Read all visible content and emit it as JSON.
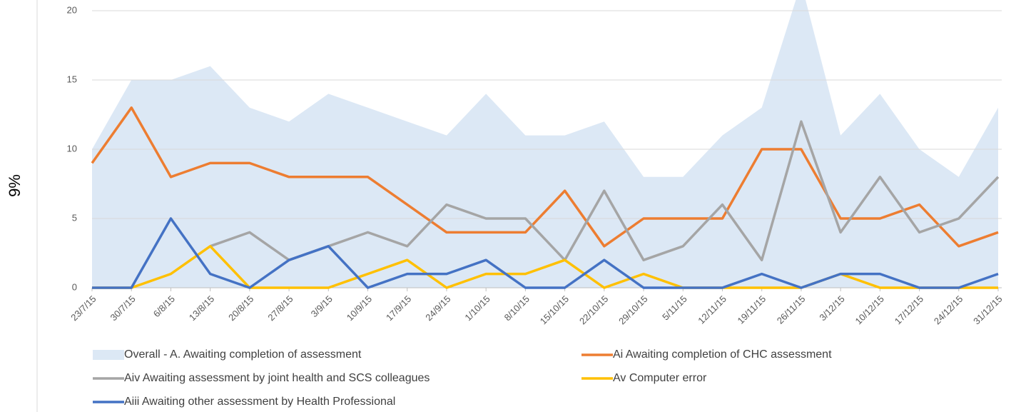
{
  "side_label": "9%",
  "chart_data": {
    "type": "line",
    "categories": [
      "23/7/15",
      "30/7/15",
      "6/8/15",
      "13/8/15",
      "20/8/15",
      "27/8/15",
      "3/9/15",
      "10/9/15",
      "17/9/15",
      "24/9/15",
      "1/10/15",
      "8/10/15",
      "15/10/15",
      "22/10/15",
      "29/10/15",
      "5/11/15",
      "12/11/15",
      "19/11/15",
      "26/11/15",
      "3/12/15",
      "10/12/15",
      "17/12/15",
      "24/12/15",
      "31/12/15"
    ],
    "ylim": [
      0,
      20
    ],
    "yticks": [
      0,
      5,
      10,
      15,
      20
    ],
    "grid": true,
    "series": [
      {
        "name": "Overall - A. Awaiting completion of assessment",
        "kind": "area",
        "color": "#dce8f5",
        "values": [
          10,
          15,
          15,
          16,
          13,
          12,
          14,
          13,
          12,
          11,
          14,
          11,
          11,
          12,
          8,
          8,
          11,
          13,
          22,
          11,
          14,
          10,
          8,
          13
        ]
      },
      {
        "name": "Ai  Awaiting completion of CHC assessment",
        "color": "#ed7d31",
        "values": [
          9,
          13,
          8,
          9,
          9,
          8,
          8,
          8,
          6,
          4,
          4,
          4,
          7,
          3,
          5,
          5,
          5,
          10,
          10,
          5,
          5,
          6,
          3,
          4
        ]
      },
      {
        "name": "Aiv  Awaiting assessment by joint health and SCS colleagues",
        "color": "#a5a5a5",
        "values": [
          null,
          null,
          null,
          3,
          4,
          2,
          3,
          4,
          3,
          6,
          5,
          5,
          2,
          7,
          2,
          3,
          6,
          2,
          12,
          4,
          8,
          4,
          5,
          8
        ]
      },
      {
        "name": "Av Computer error",
        "color": "#ffc000",
        "values": [
          0,
          0,
          1,
          3,
          0,
          0,
          0,
          1,
          2,
          0,
          1,
          1,
          2,
          0,
          1,
          0,
          0,
          0,
          0,
          1,
          0,
          0,
          0,
          0
        ]
      },
      {
        "name": "Aiii  Awaiting other assessment by Health Professional",
        "color": "#4472c4",
        "values": [
          0,
          0,
          5,
          1,
          0,
          2,
          3,
          0,
          1,
          1,
          2,
          0,
          0,
          2,
          0,
          0,
          0,
          1,
          0,
          1,
          1,
          0,
          0,
          1
        ]
      }
    ]
  }
}
